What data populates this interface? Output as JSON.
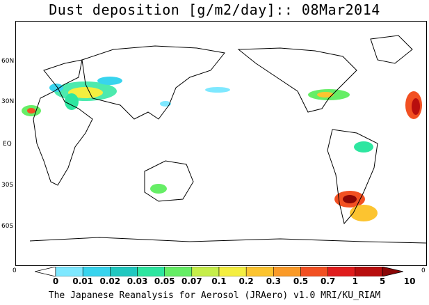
{
  "title": "Dust deposition [g/m2/day]:: 08Mar2014",
  "lat_labels": [
    "60N",
    "30N",
    "EQ",
    "30S",
    "60S"
  ],
  "edge_labels": {
    "left": "0",
    "right": "0"
  },
  "colorbar": {
    "ticks": [
      "0",
      "0.01",
      "0.02",
      "0.03",
      "0.05",
      "0.07",
      "0.1",
      "0.2",
      "0.3",
      "0.5",
      "0.7",
      "1",
      "5",
      "10"
    ],
    "colors": [
      "#ffffff",
      "#7ee8ff",
      "#38d4ee",
      "#20c8c0",
      "#2ee6a0",
      "#66ee66",
      "#c6ee4a",
      "#f4ee40",
      "#fcc430",
      "#fa9a28",
      "#f25022",
      "#e01c1c",
      "#b80e0e",
      "#8a0606"
    ]
  },
  "credit": "The Japanese Reanalysis for Aerosol (JRAero) v1.0 MRI/KU_RIAM"
}
